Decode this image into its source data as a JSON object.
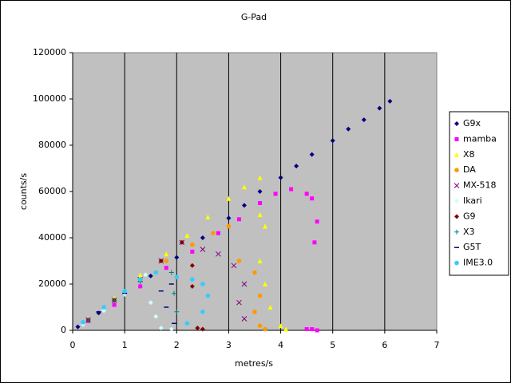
{
  "chart_data": {
    "type": "scatter",
    "title": "G-Pad",
    "x_label": "metres/s",
    "y_label": "counts/s",
    "xlim": [
      0,
      7
    ],
    "ylim": [
      0,
      120000
    ],
    "xticks": [
      0,
      1,
      2,
      3,
      4,
      5,
      6,
      7
    ],
    "yticks": [
      0,
      20000,
      40000,
      60000,
      80000,
      100000,
      120000
    ],
    "grid": "vertical",
    "legend": "right",
    "series": [
      {
        "name": "G9x",
        "color": "#000080",
        "marker": "diamond",
        "x": [
          0.1,
          0.5,
          1.0,
          1.5,
          2.0,
          2.5,
          3.0,
          3.3,
          3.6,
          4.0,
          4.3,
          4.6,
          5.0,
          5.3,
          5.6,
          5.9,
          6.1
        ],
        "y": [
          1500,
          7500,
          15500,
          23500,
          31500,
          40000,
          48500,
          54000,
          60000,
          66000,
          71000,
          76000,
          82000,
          87000,
          91000,
          96000,
          99000
        ]
      },
      {
        "name": "mamba",
        "color": "#ff00ff",
        "marker": "square",
        "x": [
          0.3,
          0.8,
          1.3,
          1.8,
          2.3,
          2.8,
          3.2,
          3.6,
          3.9,
          4.2,
          4.5,
          4.6,
          4.7,
          4.65,
          4.5,
          4.6,
          4.7
        ],
        "y": [
          4000,
          11000,
          19000,
          27000,
          34000,
          42000,
          48000,
          55000,
          59000,
          61000,
          59000,
          57000,
          47000,
          38000,
          500,
          500,
          0
        ]
      },
      {
        "name": "X8",
        "color": "#ffff00",
        "marker": "triangle",
        "x": [
          0.3,
          0.8,
          1.3,
          1.8,
          2.2,
          2.6,
          3.0,
          3.3,
          3.6,
          3.6,
          3.7,
          3.6,
          3.7,
          3.8,
          4.0,
          4.1
        ],
        "y": [
          5000,
          14000,
          24000,
          33000,
          41000,
          49000,
          57000,
          62000,
          66000,
          50000,
          45000,
          30000,
          20000,
          10000,
          2000,
          500
        ]
      },
      {
        "name": "DA",
        "color": "#ff9900",
        "marker": "circle",
        "x": [
          0.3,
          0.8,
          1.3,
          1.8,
          2.3,
          2.7,
          3.0,
          3.2,
          3.5,
          3.6,
          3.5,
          3.6,
          3.7
        ],
        "y": [
          4500,
          13000,
          22000,
          30000,
          37000,
          42000,
          45000,
          30000,
          25000,
          15000,
          8000,
          2000,
          500
        ]
      },
      {
        "name": "MX-518",
        "color": "#800080",
        "marker": "x",
        "x": [
          0.3,
          0.8,
          1.3,
          1.7,
          2.1,
          2.5,
          2.8,
          3.1,
          3.3,
          3.2,
          3.3
        ],
        "y": [
          4500,
          13000,
          22000,
          30000,
          38000,
          35000,
          33000,
          28000,
          20000,
          12000,
          5000
        ]
      },
      {
        "name": "Ikari",
        "color": "#ccffff",
        "marker": "diamond",
        "x": [
          0.2,
          0.6,
          1.0,
          1.4,
          1.5,
          1.6,
          1.7,
          1.9
        ],
        "y": [
          2500,
          8500,
          15500,
          24000,
          12000,
          6000,
          1000,
          500
        ]
      },
      {
        "name": "G9",
        "color": "#800000",
        "marker": "diamond",
        "x": [
          0.3,
          0.8,
          1.3,
          1.7,
          2.1,
          2.3,
          2.3,
          2.4,
          2.5
        ],
        "y": [
          4500,
          13000,
          22000,
          30000,
          38000,
          28000,
          19000,
          1000,
          500
        ]
      },
      {
        "name": "X3",
        "color": "#008080",
        "marker": "plus",
        "x": [
          0.3,
          0.8,
          1.3,
          1.9,
          1.95,
          2.0
        ],
        "y": [
          4500,
          13000,
          21000,
          25000,
          16000,
          8000
        ]
      },
      {
        "name": "G5T",
        "color": "#000080",
        "marker": "dash",
        "x": [
          0.5,
          1.0,
          1.7,
          1.8,
          1.9,
          1.95
        ],
        "y": [
          8000,
          16000,
          17000,
          10000,
          20000,
          3000
        ]
      },
      {
        "name": "IME3.0",
        "color": "#33ccff",
        "marker": "circle",
        "x": [
          0.2,
          0.6,
          1.0,
          1.3,
          1.6,
          2.0,
          2.3,
          2.5,
          2.6,
          2.5,
          2.2
        ],
        "y": [
          3500,
          10000,
          17000,
          22000,
          25000,
          23000,
          22000,
          20000,
          15000,
          8000,
          3000
        ]
      }
    ]
  }
}
